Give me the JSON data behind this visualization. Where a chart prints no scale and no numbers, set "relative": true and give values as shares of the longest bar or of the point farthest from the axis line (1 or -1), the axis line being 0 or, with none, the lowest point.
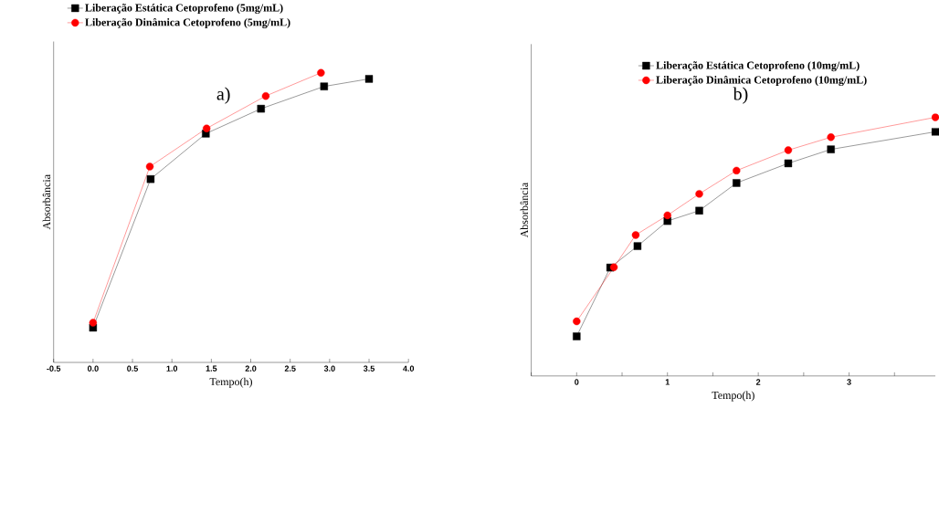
{
  "chart_data": [
    {
      "type": "line",
      "title": "a)",
      "xlabel": "Tempo(h)",
      "ylabel": "Absorbância",
      "relative": true,
      "legend": "top left",
      "xlim": [
        -0.5,
        4.0
      ],
      "xticks": [
        {
          "value": -0.5,
          "label": "-0.5"
        },
        {
          "value": 0,
          "label": "0.0"
        },
        {
          "value": 0.5,
          "label": "0.5"
        },
        {
          "value": 1,
          "label": "1.0"
        },
        {
          "value": 1.5,
          "label": "1.5"
        },
        {
          "value": 2,
          "label": "2.0"
        },
        {
          "value": 2.5,
          "label": "2.5"
        },
        {
          "value": 3,
          "label": "3.0"
        },
        {
          "value": 3.5,
          "label": "3.5"
        },
        {
          "value": 4,
          "label": "4.0"
        }
      ],
      "series": [
        {
          "name": "Liberação Estática Cetoprofeno (5mg/mL)",
          "color": "#000000",
          "marker": "square",
          "x": [
            0,
            0.73,
            1.43,
            2.13,
            2.93,
            3.5
          ],
          "values": [
            0.12,
            0.633,
            0.79,
            0.876,
            0.953,
            0.979
          ]
        },
        {
          "name": "Liberação Dinâmica Cetoprofeno (5mg/mL)",
          "color": "#ff0000",
          "marker": "circle",
          "x": [
            0,
            0.72,
            1.44,
            2.19,
            2.89
          ],
          "values": [
            0.137,
            0.676,
            0.808,
            0.92,
            1
          ]
        }
      ]
    },
    {
      "type": "line",
      "title": "b)",
      "xlabel": "Tempo(h)",
      "ylabel": "Absorbância",
      "relative": true,
      "legend": "top",
      "xlim": [
        -0.5,
        3.95
      ],
      "xticks": [
        {
          "value": -0.5,
          "label": null
        },
        0,
        {
          "value": 0.5,
          "label": null
        },
        1,
        {
          "value": 1.5,
          "label": null
        },
        2,
        {
          "value": 2.5,
          "label": null
        },
        3,
        {
          "value": 3.5,
          "label": null
        }
      ],
      "series": [
        {
          "name": "Liberação Estática Cetoprofeno (10mg/mL)",
          "color": "#000000",
          "marker": "square",
          "x": [
            0,
            0.37,
            0.67,
            1.0,
            1.35,
            1.76,
            2.33,
            2.8,
            3.95
          ],
          "values": [
            0.153,
            0.419,
            0.502,
            0.599,
            0.639,
            0.746,
            0.822,
            0.876,
            0.944
          ]
        },
        {
          "name": "Liberação Dinâmica Cetoprofeno (10mg/mL)",
          "color": "#ff0000",
          "marker": "circle",
          "x": [
            0,
            0.41,
            0.65,
            1.0,
            1.35,
            1.76,
            2.33,
            2.8,
            3.95
          ],
          "values": [
            0.211,
            0.42,
            0.545,
            0.621,
            0.704,
            0.794,
            0.873,
            0.923,
            1
          ]
        }
      ]
    }
  ]
}
